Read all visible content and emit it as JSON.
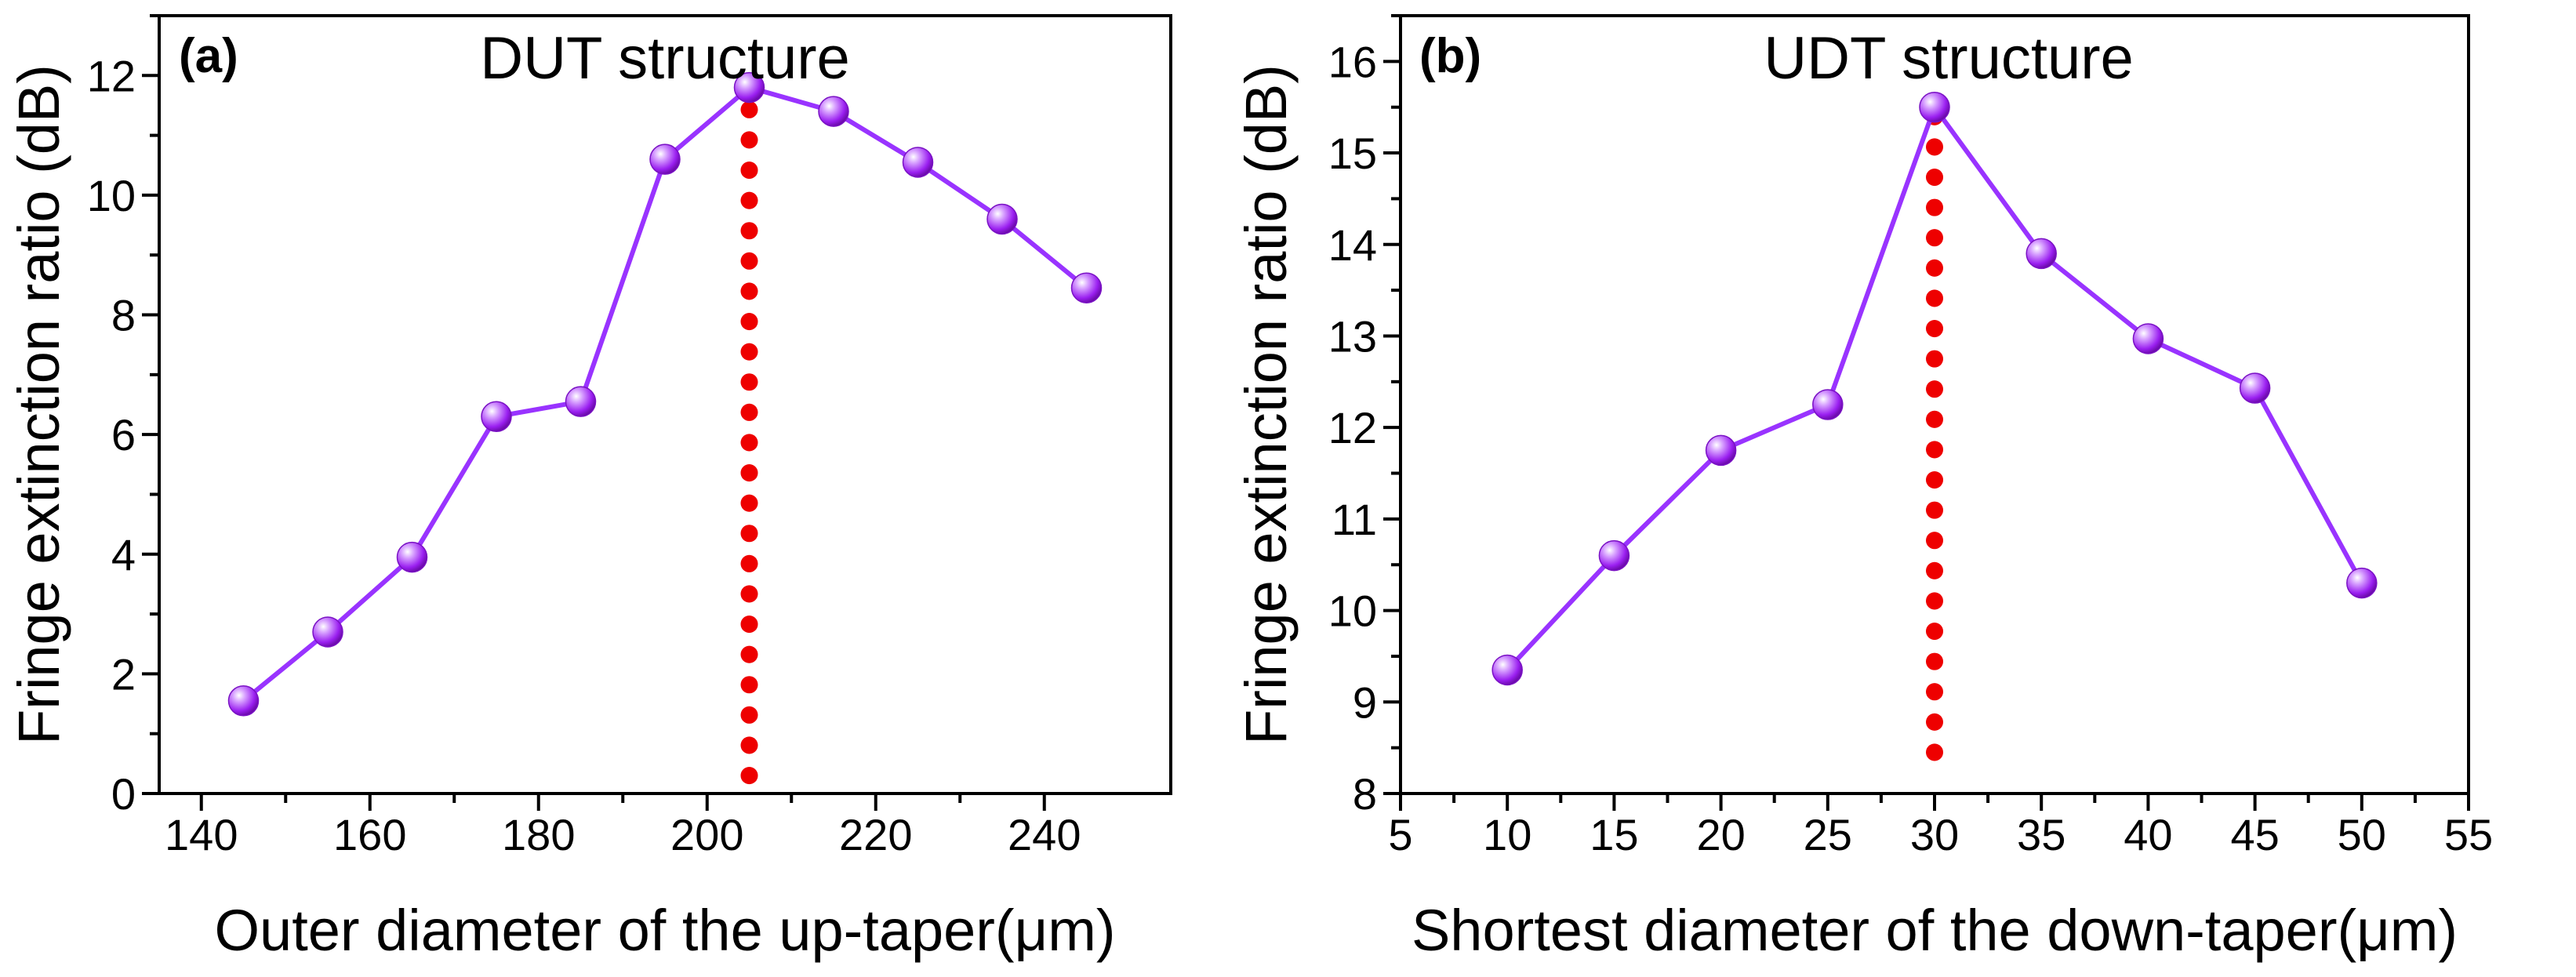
{
  "chart_data": [
    {
      "type": "line",
      "panel_label": "(a)",
      "title": "DUT structure",
      "xlabel": "Outer diameter of the up-taper(μm)",
      "ylabel": "Fringe extinction ratio (dB)",
      "xlim": [
        135,
        255
      ],
      "ylim": [
        0,
        13
      ],
      "xticks": [
        140,
        160,
        180,
        200,
        220,
        240
      ],
      "xtick_labels": [
        "140",
        "160",
        "180",
        "200",
        "220",
        "240"
      ],
      "yticks": [
        0,
        2,
        4,
        6,
        8,
        10,
        12
      ],
      "ytick_labels": [
        "0",
        "2",
        "4",
        "6",
        "8",
        "10",
        "12"
      ],
      "x": [
        145,
        155,
        165,
        175,
        185,
        195,
        205,
        215,
        225,
        235,
        245
      ],
      "values": [
        1.55,
        2.7,
        3.95,
        6.3,
        6.55,
        10.6,
        11.8,
        11.4,
        10.55,
        9.6,
        8.45
      ],
      "series_color": "#9933ff",
      "marker_color": "#a020f0",
      "reference_line": {
        "x": 205,
        "y_from": 0.3,
        "y_to": 11.8,
        "color": "#ee0000",
        "style": "dotted"
      }
    },
    {
      "type": "line",
      "panel_label": "(b)",
      "title": "UDT structure",
      "xlabel": "Shortest diameter of the down-taper(μm)",
      "ylabel": "Fringe extinction ratio (dB)",
      "xlim": [
        5,
        55
      ],
      "ylim": [
        8,
        16.5
      ],
      "xticks": [
        5,
        10,
        15,
        20,
        25,
        30,
        35,
        40,
        45,
        50,
        55
      ],
      "xtick_labels": [
        "5",
        "10",
        "15",
        "20",
        "25",
        "30",
        "35",
        "40",
        "45",
        "50",
        "55"
      ],
      "yticks": [
        8,
        9,
        10,
        11,
        12,
        13,
        14,
        15,
        16
      ],
      "ytick_labels": [
        "8",
        "9",
        "10",
        "11",
        "12",
        "13",
        "14",
        "15",
        "16"
      ],
      "x": [
        10,
        15,
        20,
        25,
        30,
        35,
        40,
        45,
        50
      ],
      "values": [
        9.35,
        10.6,
        11.75,
        12.25,
        15.5,
        13.9,
        12.97,
        12.43,
        10.3
      ],
      "series_color": "#9933ff",
      "marker_color": "#a020f0",
      "reference_line": {
        "x": 30,
        "y_from": 8.45,
        "y_to": 15.5,
        "color": "#ee0000",
        "style": "dotted"
      }
    }
  ]
}
